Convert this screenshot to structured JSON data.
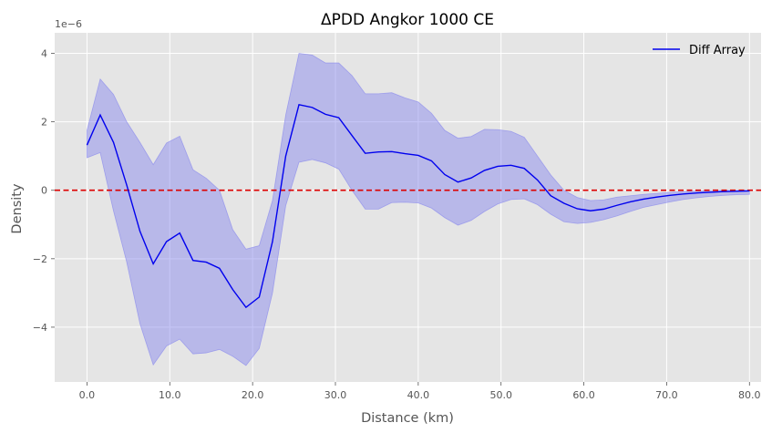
{
  "chart_data": {
    "type": "line",
    "title": "ΔPDD Angkor 1000 CE",
    "xlabel": "Distance (km)",
    "ylabel": "Density",
    "y_scale_label": "1e−6",
    "xlim": [
      -3.9,
      81.4
    ],
    "ylim": [
      -5.6,
      4.6
    ],
    "x_ticks": [
      0,
      10,
      20,
      30,
      40,
      50,
      60,
      70,
      80
    ],
    "x_tick_labels": [
      "0.0",
      "10.0",
      "20.0",
      "30.0",
      "40.0",
      "50.0",
      "60.0",
      "70.0",
      "80.0"
    ],
    "y_ticks": [
      -4,
      -2,
      0,
      2,
      4
    ],
    "y_tick_labels": [
      "−4",
      "−2",
      "0",
      "2",
      "4"
    ],
    "grid": true,
    "legend_position": "top-right",
    "zero_line": {
      "y": 0,
      "color": "#dd0000",
      "style": "dashed"
    },
    "series": [
      {
        "name": "Diff Array",
        "color": "#0000ee",
        "band_color": "#8080ee",
        "x": [
          0,
          1.6,
          3.2,
          4.8,
          6.4,
          8.0,
          9.6,
          11.2,
          12.8,
          14.4,
          16.0,
          17.6,
          19.2,
          20.8,
          22.4,
          24.0,
          25.6,
          27.2,
          28.8,
          30.4,
          32.0,
          33.6,
          35.2,
          36.8,
          38.4,
          40.0,
          41.6,
          43.2,
          44.8,
          46.4,
          48.0,
          49.6,
          51.2,
          52.8,
          54.4,
          56.0,
          57.6,
          59.2,
          60.8,
          62.4,
          64.0,
          65.6,
          67.2,
          68.8,
          70.4,
          72.0,
          73.6,
          75.2,
          76.8,
          78.4,
          80.0
        ],
        "values": [
          1.32,
          2.2,
          1.4,
          0.15,
          -1.2,
          -2.15,
          -1.5,
          -1.25,
          -2.05,
          -2.1,
          -2.28,
          -2.9,
          -3.42,
          -3.12,
          -1.5,
          1.0,
          2.5,
          2.42,
          2.22,
          2.12,
          1.6,
          1.08,
          1.12,
          1.13,
          1.07,
          1.02,
          0.86,
          0.46,
          0.24,
          0.36,
          0.58,
          0.7,
          0.73,
          0.64,
          0.3,
          -0.16,
          -0.38,
          -0.54,
          -0.6,
          -0.55,
          -0.44,
          -0.34,
          -0.26,
          -0.2,
          -0.15,
          -0.11,
          -0.08,
          -0.06,
          -0.04,
          -0.03,
          -0.02
        ],
        "upper": [
          1.75,
          3.25,
          2.8,
          2.0,
          1.4,
          0.75,
          1.38,
          1.58,
          0.6,
          0.35,
          0.0,
          -1.15,
          -1.72,
          -1.62,
          -0.3,
          2.2,
          4.0,
          3.95,
          3.72,
          3.72,
          3.35,
          2.82,
          2.82,
          2.85,
          2.7,
          2.58,
          2.25,
          1.75,
          1.52,
          1.57,
          1.78,
          1.77,
          1.72,
          1.55,
          1.0,
          0.45,
          0.0,
          -0.21,
          -0.3,
          -0.28,
          -0.2,
          -0.16,
          -0.12,
          -0.09,
          -0.06,
          -0.04,
          -0.02,
          -0.01,
          0.0,
          0.0,
          0.0
        ],
        "lower": [
          0.95,
          1.1,
          -0.6,
          -2.1,
          -3.9,
          -5.1,
          -4.55,
          -4.35,
          -4.78,
          -4.75,
          -4.65,
          -4.85,
          -5.12,
          -4.62,
          -3.0,
          -0.45,
          0.82,
          0.9,
          0.8,
          0.62,
          0.0,
          -0.55,
          -0.55,
          -0.36,
          -0.35,
          -0.37,
          -0.52,
          -0.8,
          -1.02,
          -0.88,
          -0.62,
          -0.4,
          -0.27,
          -0.25,
          -0.42,
          -0.7,
          -0.92,
          -0.97,
          -0.94,
          -0.86,
          -0.75,
          -0.62,
          -0.5,
          -0.42,
          -0.34,
          -0.27,
          -0.22,
          -0.18,
          -0.15,
          -0.13,
          -0.12
        ]
      }
    ]
  }
}
